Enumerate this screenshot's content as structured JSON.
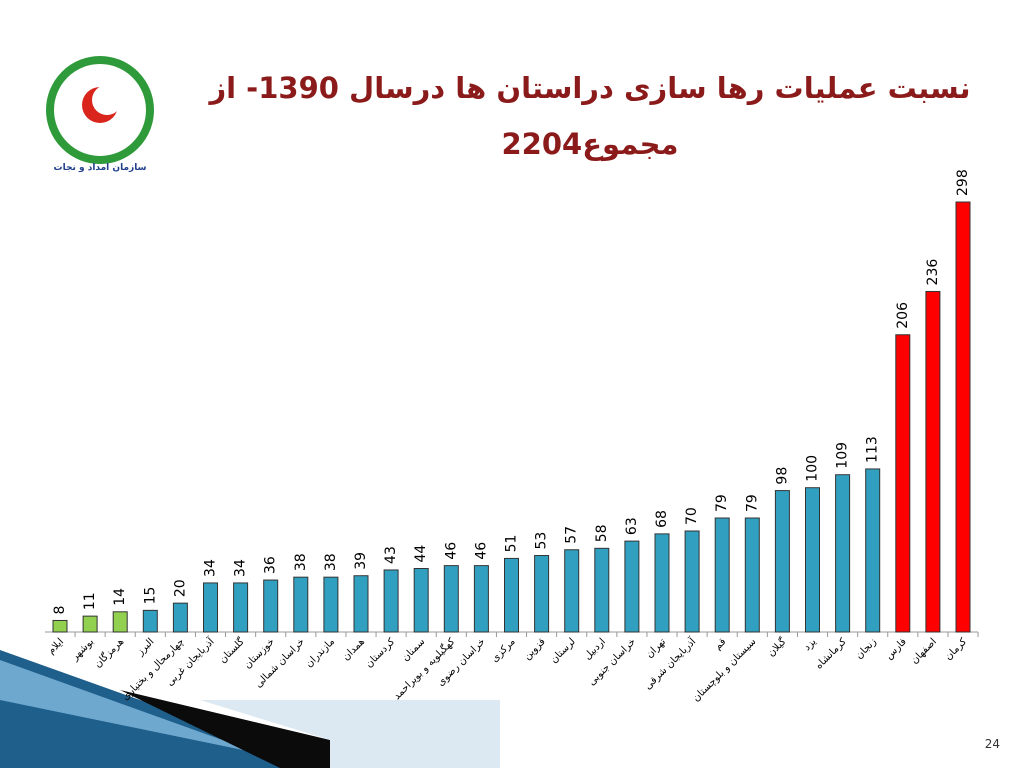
{
  "chart_data": {
    "type": "bar",
    "title": "نسبت عملیات رها سازی دراستان ها درسال 1390- از مجموع2204",
    "categories": [
      "ایلام",
      "بوشهر",
      "هرمزگان",
      "البرز",
      "چهارمحال و بختیاری",
      "آذربایجان غربی",
      "گلستان",
      "خوزستان",
      "خراسان شمالی",
      "مازندران",
      "همدان",
      "کردستان",
      "سمنان",
      "کهگیلویه و بویراحمد",
      "خراسان رضوی",
      "مرکزی",
      "قزوین",
      "لرستان",
      "اردبیل",
      "خراسان جنوبی",
      "تهران",
      "آذربایجان شرقی",
      "قم",
      "سیستان و بلوچستان",
      "گیلان",
      "یزد",
      "کرمانشاه",
      "زنجان",
      "فارس",
      "اصفهان",
      "کرمان"
    ],
    "values": [
      8,
      11,
      14,
      15,
      20,
      34,
      34,
      36,
      38,
      38,
      39,
      43,
      44,
      46,
      46,
      51,
      53,
      57,
      58,
      63,
      68,
      70,
      79,
      79,
      98,
      100,
      109,
      113,
      206,
      236,
      298
    ],
    "colors": [
      "#92d050",
      "#92d050",
      "#92d050",
      "#31a0c0",
      "#31a0c0",
      "#31a0c0",
      "#31a0c0",
      "#31a0c0",
      "#31a0c0",
      "#31a0c0",
      "#31a0c0",
      "#31a0c0",
      "#31a0c0",
      "#31a0c0",
      "#31a0c0",
      "#31a0c0",
      "#31a0c0",
      "#31a0c0",
      "#31a0c0",
      "#31a0c0",
      "#31a0c0",
      "#31a0c0",
      "#31a0c0",
      "#31a0c0",
      "#31a0c0",
      "#31a0c0",
      "#31a0c0",
      "#31a0c0",
      "#ff0000",
      "#ff0000",
      "#ff0000"
    ]
  },
  "slide": {
    "logo_text": "سازمان امداد و نجات",
    "page_number": "24"
  }
}
